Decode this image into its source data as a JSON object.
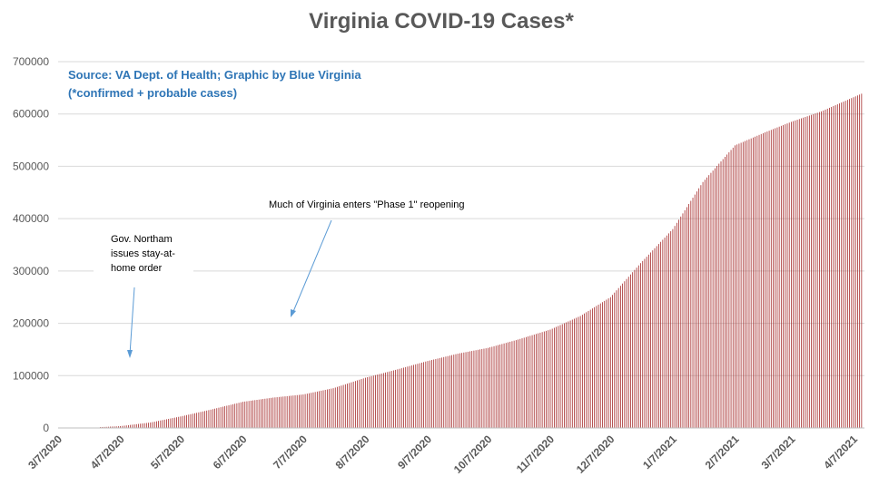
{
  "chart_data": {
    "type": "bar",
    "title": "Virginia COVID-19 Cases*",
    "source_line1": "Source: VA Dept. of Health; Graphic by Blue Virginia",
    "source_line2": "(*confirmed + probable cases)",
    "xlabel": "",
    "ylabel": "",
    "ylim": [
      0,
      700000
    ],
    "yticks": [
      "0",
      "100000",
      "200000",
      "300000",
      "400000",
      "500000",
      "600000",
      "700000"
    ],
    "grid": true,
    "bar_color": "#A52A2A",
    "x_tick_labels": [
      "3/7/2020",
      "4/7/2020",
      "5/7/2020",
      "6/7/2020",
      "7/7/2020",
      "8/7/2020",
      "9/7/2020",
      "10/7/2020",
      "11/7/2020",
      "12/7/2020",
      "1/7/2021",
      "2/7/2021",
      "3/7/2021",
      "4/7/2021"
    ],
    "series": [
      {
        "x": [
          "3/7/2020",
          "3/22/2020",
          "4/7/2020",
          "4/22/2020",
          "5/7/2020",
          "5/22/2020",
          "6/7/2020",
          "6/22/2020",
          "7/7/2020",
          "7/22/2020",
          "8/7/2020",
          "8/22/2020",
          "9/7/2020",
          "9/22/2020",
          "10/7/2020",
          "10/22/2020",
          "11/7/2020",
          "11/22/2020",
          "12/7/2020",
          "12/22/2020",
          "1/7/2021",
          "1/22/2021",
          "2/7/2021",
          "2/22/2021",
          "3/7/2021",
          "3/22/2021",
          "4/7/2021"
        ],
        "values": [
          0,
          500,
          3500,
          10500,
          22000,
          35000,
          50000,
          58000,
          64000,
          76000,
          96000,
          111000,
          128000,
          142000,
          153000,
          169000,
          188000,
          214000,
          250000,
          315000,
          380000,
          470000,
          540000,
          565000,
          585000,
          605000,
          632000
        ]
      }
    ],
    "annotations": [
      {
        "lines": [
          "Gov. Northam",
          "issues stay-at-",
          "home order"
        ]
      },
      {
        "lines": [
          "Much of Virginia enters \"Phase 1\" reopening"
        ]
      }
    ]
  }
}
